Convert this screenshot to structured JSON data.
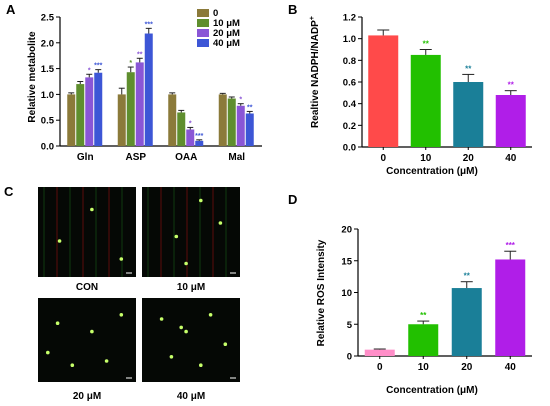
{
  "panel_letters": {
    "a": "A",
    "b": "B",
    "c": "C",
    "d": "D"
  },
  "colors": {
    "control": "#8b7a3a",
    "c10": "#5f8e2e",
    "c20": "#8a56d6",
    "c40": "#3d56d6",
    "b_bars": [
      "#ff4a4a",
      "#22c000",
      "#1a7f98",
      "#b01ee8"
    ],
    "d_bars": [
      "#ff8ec8",
      "#22c000",
      "#1a7f98",
      "#b01ee8"
    ],
    "significance": "#222222"
  },
  "chart_data": [
    {
      "panel": "A",
      "type": "bar",
      "ylabel": "Relative metabolite",
      "categories": [
        "Gln",
        "ASP",
        "OAA",
        "Mal"
      ],
      "ylim": [
        0,
        2.5
      ],
      "yticks": [
        "0.0",
        "0.5",
        "1.0",
        "1.5",
        "2.0",
        "2.5"
      ],
      "legend": {
        "position": "top-right",
        "entries": [
          "0",
          "10 μM",
          "20 μM",
          "40 μM"
        ]
      },
      "series": [
        {
          "name": "0",
          "values": [
            1.0,
            1.0,
            1.0,
            1.0
          ],
          "err": [
            0.03,
            0.12,
            0.03,
            0.02
          ]
        },
        {
          "name": "10 μM",
          "values": [
            1.2,
            1.43,
            0.65,
            0.92
          ],
          "err": [
            0.05,
            0.1,
            0.04,
            0.03
          ]
        },
        {
          "name": "20 μM",
          "values": [
            1.33,
            1.62,
            0.32,
            0.78
          ],
          "err": [
            0.06,
            0.08,
            0.04,
            0.04
          ]
        },
        {
          "name": "40 μM",
          "values": [
            1.42,
            2.18,
            0.1,
            0.63
          ],
          "err": [
            0.06,
            0.1,
            0.02,
            0.04
          ]
        }
      ],
      "significance": [
        [
          "",
          "",
          "*",
          "***"
        ],
        [
          "",
          "*",
          "**",
          "***"
        ],
        [
          "",
          "",
          "*",
          "***"
        ],
        [
          "",
          "",
          "*",
          "**"
        ]
      ]
    },
    {
      "panel": "B",
      "type": "bar",
      "ylabel": "Realtive NADPH/NADP",
      "ylabel_sup": "+",
      "xlabel": "Concentration (μM)",
      "categories": [
        "0",
        "10",
        "20",
        "40"
      ],
      "values": [
        1.03,
        0.85,
        0.6,
        0.48
      ],
      "err": [
        0.05,
        0.05,
        0.07,
        0.04
      ],
      "significance": [
        "",
        "**",
        "**",
        "**"
      ],
      "ylim": [
        0,
        1.2
      ],
      "yticks": [
        "0.0",
        "0.2",
        "0.4",
        "0.6",
        "0.8",
        "1.0",
        "1.2"
      ]
    },
    {
      "panel": "D",
      "type": "bar",
      "ylabel": "Relative ROS Intensity",
      "xlabel": "Concentration (μM)",
      "categories": [
        "0",
        "10",
        "20",
        "40"
      ],
      "values": [
        1.0,
        5.0,
        10.7,
        15.2
      ],
      "err": [
        0.1,
        0.5,
        1.0,
        1.3
      ],
      "significance": [
        "",
        "**",
        "**",
        "***"
      ],
      "ylim": [
        0,
        20
      ],
      "yticks": [
        "0",
        "5",
        "10",
        "15",
        "20"
      ]
    }
  ],
  "micrographs": {
    "captions": [
      "CON",
      "10 μM",
      "20 μM",
      "40 μM"
    ],
    "fluorescence_spots": [
      [
        [
          0.55,
          0.25
        ],
        [
          0.22,
          0.6
        ],
        [
          0.85,
          0.8
        ]
      ],
      [
        [
          0.35,
          0.55
        ],
        [
          0.6,
          0.15
        ],
        [
          0.45,
          0.85
        ],
        [
          0.8,
          0.4
        ]
      ],
      [
        [
          0.2,
          0.3
        ],
        [
          0.55,
          0.4
        ],
        [
          0.7,
          0.75
        ],
        [
          0.35,
          0.8
        ],
        [
          0.85,
          0.2
        ],
        [
          0.1,
          0.65
        ]
      ],
      [
        [
          0.4,
          0.35
        ],
        [
          0.45,
          0.4
        ],
        [
          0.2,
          0.25
        ],
        [
          0.6,
          0.8
        ],
        [
          0.85,
          0.55
        ],
        [
          0.3,
          0.7
        ],
        [
          0.7,
          0.2
        ]
      ]
    ]
  }
}
